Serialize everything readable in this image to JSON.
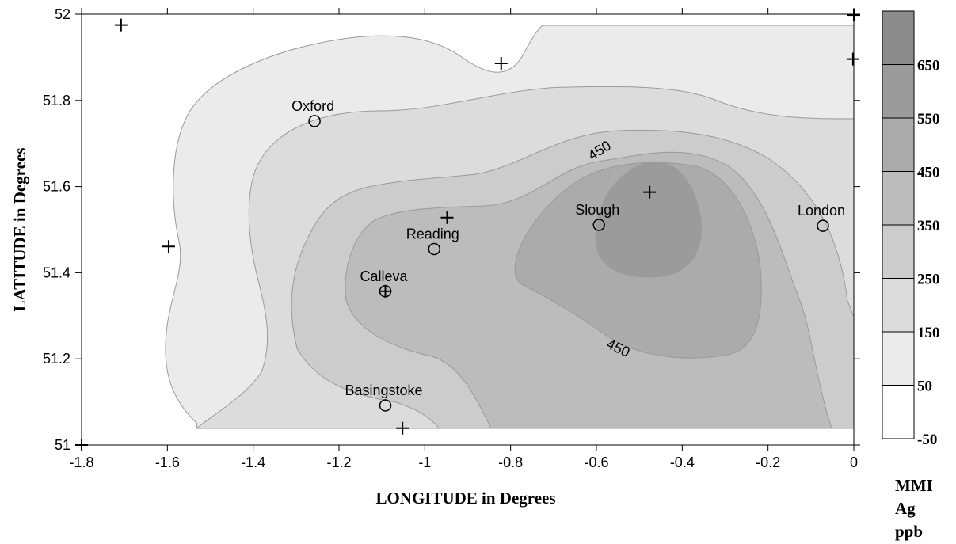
{
  "chart_data": {
    "type": "contour",
    "xlabel": "LONGITUDE in Degrees",
    "ylabel": "LATITUDE in Degrees",
    "xlim": [
      -1.8,
      0
    ],
    "ylim": [
      51,
      52
    ],
    "x_ticks": [
      "-1.8",
      "-1.6",
      "-1.4",
      "-1.2",
      "-1",
      "-0.8",
      "-0.6",
      "-0.4",
      "-0.2",
      "0"
    ],
    "y_ticks": [
      "51",
      "51.2",
      "51.4",
      "51.6",
      "51.8",
      "52"
    ],
    "legend": {
      "title_lines": [
        "MMI",
        "Ag",
        "ppb"
      ],
      "levels": [
        -50,
        50,
        150,
        250,
        350,
        450,
        550,
        650
      ],
      "tick_labels": [
        "-50",
        "50",
        "150",
        "250",
        "350",
        "450",
        "550",
        "650"
      ],
      "colors": [
        "#ffffff",
        "#ebebeb",
        "#dcdcdc",
        "#cccccc",
        "#bcbcbc",
        "#ababab",
        "#9b9b9b",
        "#8c8c8c"
      ]
    },
    "cities": [
      {
        "name": "Oxford",
        "lon": -1.257,
        "lat": 51.752
      },
      {
        "name": "Reading",
        "lon": -0.978,
        "lat": 51.455
      },
      {
        "name": "Slough",
        "lon": -0.594,
        "lat": 51.511
      },
      {
        "name": "London",
        "lon": -0.072,
        "lat": 51.509
      },
      {
        "name": "Calleva",
        "lon": -1.092,
        "lat": 51.357
      },
      {
        "name": "Basingstoke",
        "lon": -1.092,
        "lat": 51.092
      }
    ],
    "sample_points": [
      {
        "lon": -1.708,
        "lat": 51.975
      },
      {
        "lon": -0.822,
        "lat": 51.886
      },
      {
        "lon": 0.0,
        "lat": 51.998
      },
      {
        "lon": -0.002,
        "lat": 51.896
      },
      {
        "lon": -0.476,
        "lat": 51.587
      },
      {
        "lon": -0.948,
        "lat": 51.528
      },
      {
        "lon": -1.597,
        "lat": 51.461
      },
      {
        "lon": -1.092,
        "lat": 51.357
      },
      {
        "lon": -1.052,
        "lat": 51.039
      },
      {
        "lon": -1.8,
        "lat": 51.0
      }
    ],
    "contour_labels": [
      "450",
      "450"
    ]
  }
}
